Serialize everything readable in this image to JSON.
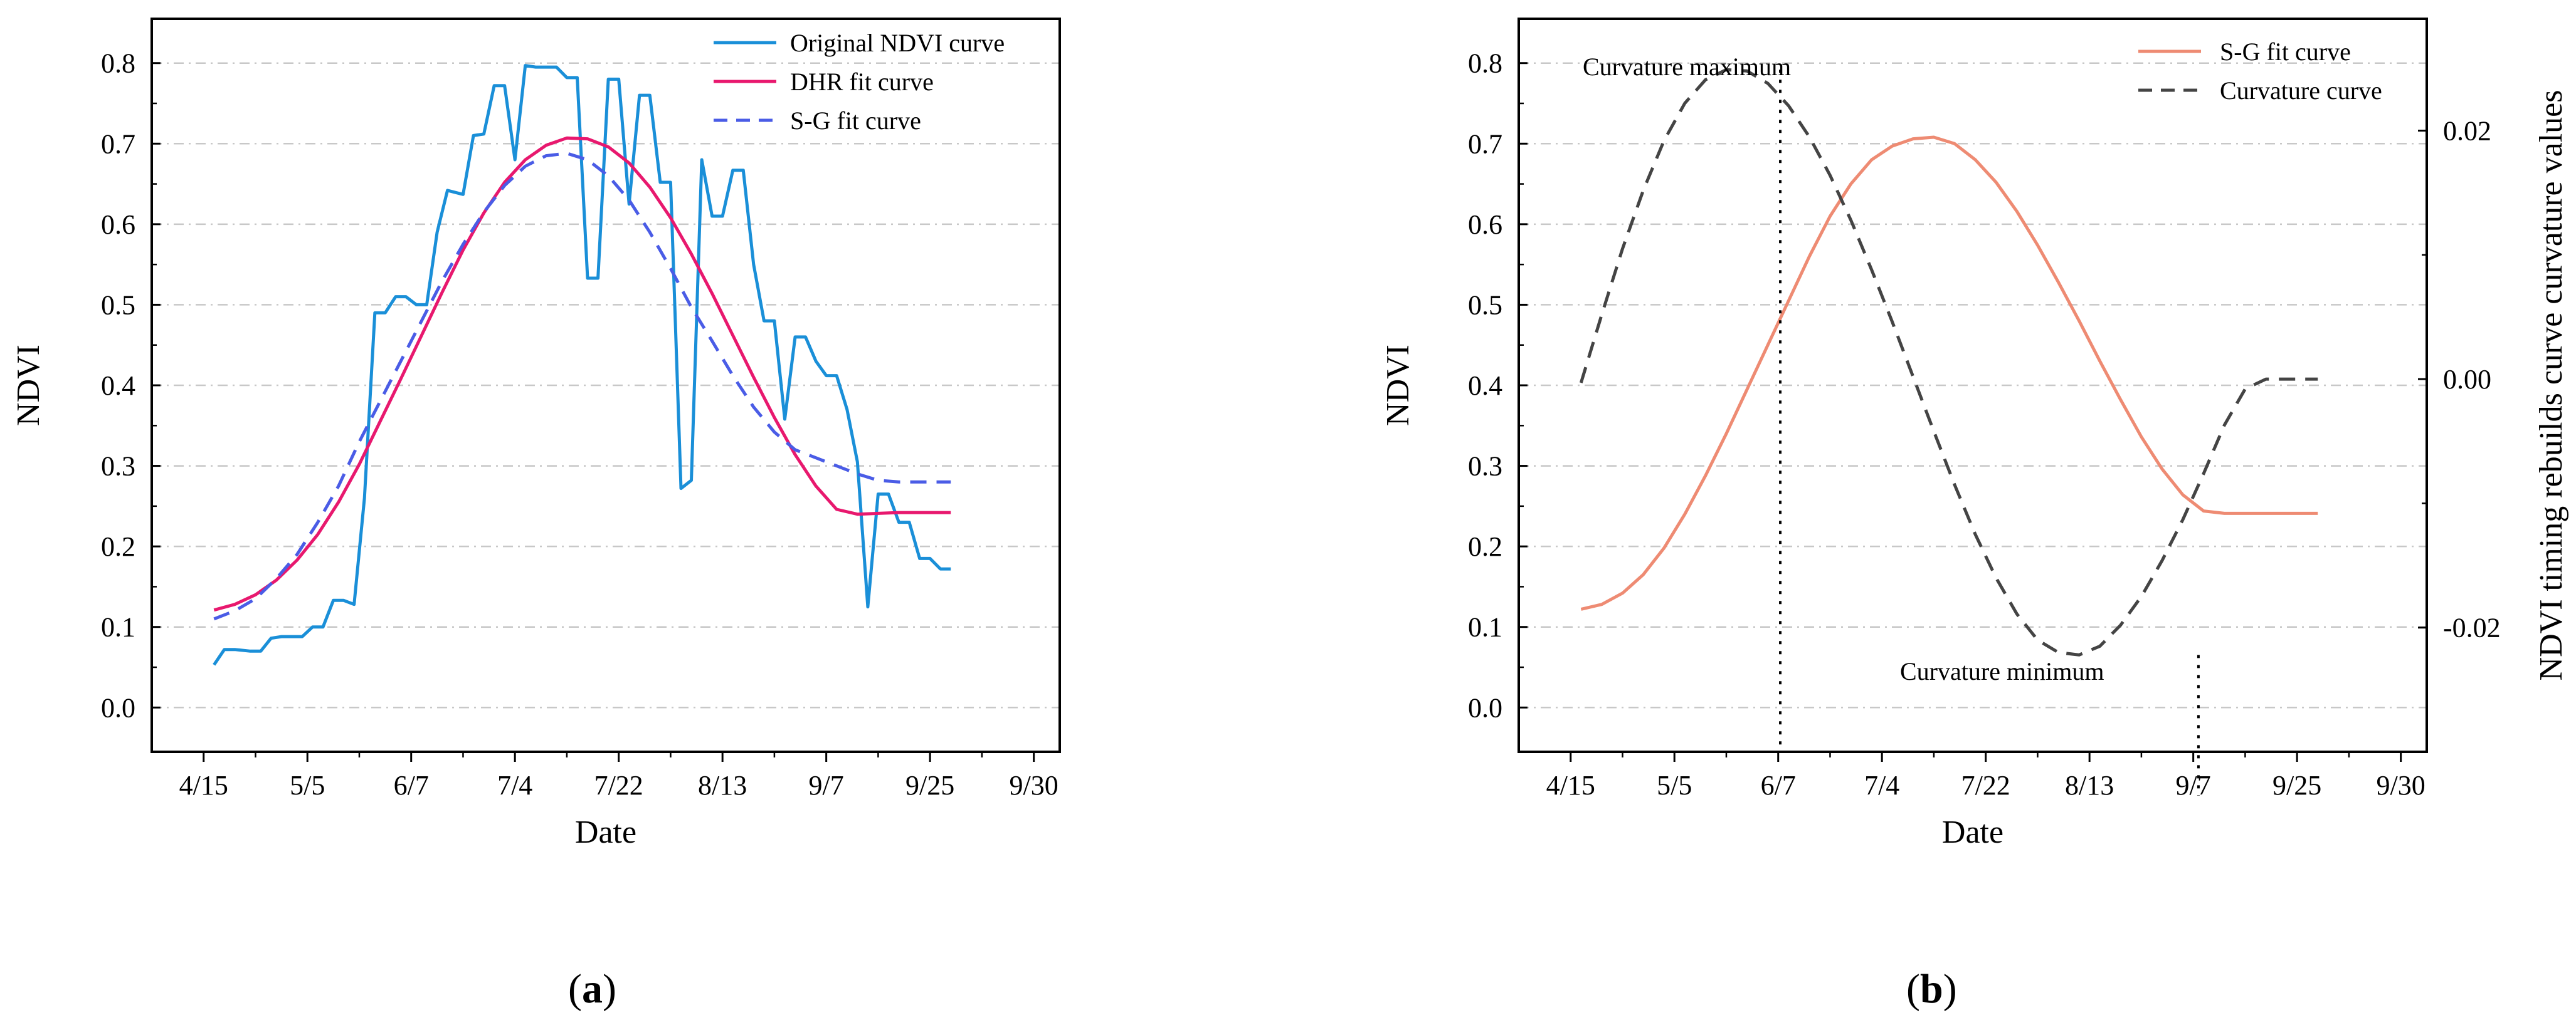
{
  "chart_data": [
    {
      "id": "a",
      "type": "line",
      "panel_label": "(a)",
      "panel_letter": "a",
      "xlabel": "Date",
      "ylabel": "NDVI",
      "x_tick_labels": [
        "4/15",
        "5/5",
        "6/7",
        "7/4",
        "7/22",
        "8/13",
        "9/7",
        "9/25",
        "9/30"
      ],
      "x_tick_positions": [
        0,
        1,
        2,
        3,
        4,
        5,
        6,
        7,
        8
      ],
      "xlim": [
        -0.5,
        8.25
      ],
      "ylim": [
        -0.055,
        0.855
      ],
      "yticks": [
        0.0,
        0.1,
        0.2,
        0.3,
        0.4,
        0.5,
        0.6,
        0.7,
        0.8
      ],
      "grid": "horizontal dash-dot",
      "legend_position": "top-right",
      "series": [
        {
          "name": "Original NDVI curve",
          "color": "#1a8fd8",
          "style": "solid",
          "x": [
            0.1,
            0.2,
            0.3,
            0.45,
            0.55,
            0.65,
            0.75,
            0.85,
            0.95,
            1.05,
            1.15,
            1.25,
            1.35,
            1.45,
            1.55,
            1.65,
            1.75,
            1.85,
            1.95,
            2.05,
            2.15,
            2.25,
            2.35,
            2.5,
            2.6,
            2.7,
            2.8,
            2.9,
            3.0,
            3.1,
            3.2,
            3.3,
            3.4,
            3.5,
            3.6,
            3.7,
            3.8,
            3.9,
            4.0,
            4.1,
            4.2,
            4.3,
            4.4,
            4.5,
            4.6,
            4.7,
            4.8,
            4.9,
            5.0,
            5.1,
            5.2,
            5.3,
            5.4,
            5.5,
            5.6,
            5.7,
            5.8,
            5.9,
            6.0,
            6.1,
            6.2,
            6.3,
            6.4,
            6.5,
            6.6,
            6.7,
            6.8,
            6.9,
            7.0,
            7.1,
            7.2
          ],
          "values": [
            0.053,
            0.072,
            0.072,
            0.07,
            0.07,
            0.086,
            0.088,
            0.088,
            0.088,
            0.1,
            0.1,
            0.133,
            0.133,
            0.128,
            0.26,
            0.49,
            0.49,
            0.51,
            0.51,
            0.5,
            0.5,
            0.59,
            0.642,
            0.637,
            0.71,
            0.712,
            0.772,
            0.772,
            0.68,
            0.797,
            0.795,
            0.795,
            0.795,
            0.782,
            0.782,
            0.533,
            0.533,
            0.78,
            0.78,
            0.625,
            0.76,
            0.76,
            0.652,
            0.652,
            0.272,
            0.282,
            0.68,
            0.61,
            0.61,
            0.667,
            0.667,
            0.55,
            0.48,
            0.48,
            0.358,
            0.46,
            0.46,
            0.43,
            0.412,
            0.412,
            0.37,
            0.305,
            0.125,
            0.265,
            0.265,
            0.23,
            0.23,
            0.185,
            0.185,
            0.172,
            0.172
          ]
        },
        {
          "name": "DHR fit curve",
          "color": "#e8186e",
          "style": "solid",
          "x": [
            0.1,
            0.3,
            0.5,
            0.7,
            0.9,
            1.1,
            1.3,
            1.5,
            1.7,
            1.9,
            2.1,
            2.3,
            2.5,
            2.7,
            2.9,
            3.1,
            3.3,
            3.5,
            3.7,
            3.9,
            4.1,
            4.3,
            4.5,
            4.7,
            4.9,
            5.1,
            5.3,
            5.5,
            5.7,
            5.9,
            6.1,
            6.3,
            6.5,
            6.7,
            6.9,
            7.1,
            7.2
          ],
          "values": [
            0.121,
            0.128,
            0.14,
            0.158,
            0.183,
            0.215,
            0.255,
            0.302,
            0.355,
            0.408,
            0.462,
            0.516,
            0.568,
            0.614,
            0.652,
            0.68,
            0.698,
            0.707,
            0.706,
            0.696,
            0.676,
            0.646,
            0.608,
            0.563,
            0.514,
            0.462,
            0.41,
            0.36,
            0.314,
            0.275,
            0.246,
            0.24,
            0.241,
            0.242,
            0.242,
            0.242,
            0.242
          ]
        },
        {
          "name": "S-G fit curve",
          "color": "#4a5ce6",
          "style": "dashed",
          "x": [
            0.1,
            0.3,
            0.5,
            0.7,
            0.9,
            1.1,
            1.3,
            1.5,
            1.7,
            1.9,
            2.1,
            2.3,
            2.5,
            2.7,
            2.9,
            3.1,
            3.3,
            3.5,
            3.7,
            3.9,
            4.1,
            4.3,
            4.5,
            4.7,
            4.9,
            5.1,
            5.3,
            5.5,
            5.7,
            5.9,
            6.1,
            6.3,
            6.5,
            6.7,
            6.9,
            7.1,
            7.2
          ],
          "values": [
            0.11,
            0.12,
            0.135,
            0.16,
            0.19,
            0.23,
            0.275,
            0.33,
            0.38,
            0.43,
            0.48,
            0.53,
            0.575,
            0.615,
            0.648,
            0.672,
            0.685,
            0.688,
            0.68,
            0.66,
            0.63,
            0.59,
            0.545,
            0.497,
            0.455,
            0.412,
            0.373,
            0.342,
            0.32,
            0.31,
            0.3,
            0.29,
            0.282,
            0.28,
            0.28,
            0.28,
            0.28
          ]
        }
      ]
    },
    {
      "id": "b",
      "type": "line",
      "panel_label": "(b)",
      "panel_letter": "b",
      "xlabel": "Date",
      "ylabel": "NDVI",
      "y2label": "NDVI timing rebuilds curve curvature values",
      "x_tick_labels": [
        "4/15",
        "5/5",
        "6/7",
        "7/4",
        "7/22",
        "8/13",
        "9/7",
        "9/25",
        "9/30"
      ],
      "x_tick_positions": [
        0,
        1,
        2,
        3,
        4,
        5,
        6,
        7,
        8
      ],
      "xlim": [
        -0.5,
        8.25
      ],
      "ylim": [
        -0.055,
        0.855
      ],
      "yticks": [
        0.0,
        0.1,
        0.2,
        0.3,
        0.4,
        0.5,
        0.6,
        0.7,
        0.8
      ],
      "y2lim": [
        -0.03,
        0.029
      ],
      "y2ticks": [
        -0.02,
        0.0,
        0.02
      ],
      "y2tick_labels": [
        "-0.02",
        "0.00",
        "0.02"
      ],
      "grid": "horizontal dash-dot",
      "legend_position": "top-right",
      "series": [
        {
          "name": "S-G fit curve",
          "color": "#ee8b73",
          "style": "solid",
          "axis": "left",
          "x": [
            0.1,
            0.3,
            0.5,
            0.7,
            0.9,
            1.1,
            1.3,
            1.5,
            1.7,
            1.9,
            2.1,
            2.3,
            2.5,
            2.7,
            2.9,
            3.1,
            3.3,
            3.5,
            3.7,
            3.9,
            4.1,
            4.3,
            4.5,
            4.7,
            4.9,
            5.1,
            5.3,
            5.5,
            5.7,
            5.9,
            6.1,
            6.3,
            6.5,
            6.7,
            6.9,
            7.1,
            7.2
          ],
          "values": [
            0.122,
            0.128,
            0.142,
            0.165,
            0.198,
            0.24,
            0.288,
            0.34,
            0.395,
            0.45,
            0.505,
            0.56,
            0.61,
            0.65,
            0.68,
            0.697,
            0.706,
            0.708,
            0.7,
            0.68,
            0.652,
            0.616,
            0.574,
            0.528,
            0.48,
            0.43,
            0.382,
            0.336,
            0.296,
            0.264,
            0.244,
            0.241,
            0.241,
            0.241,
            0.241,
            0.241,
            0.241
          ]
        },
        {
          "name": "Curvature curve",
          "color": "#444444",
          "style": "dashed",
          "axis": "right",
          "x": [
            0.1,
            0.3,
            0.5,
            0.7,
            0.9,
            1.1,
            1.3,
            1.5,
            1.7,
            1.9,
            2.1,
            2.3,
            2.5,
            2.7,
            2.9,
            3.1,
            3.3,
            3.5,
            3.7,
            3.9,
            4.1,
            4.3,
            4.5,
            4.7,
            4.9,
            5.1,
            5.3,
            5.5,
            5.7,
            5.9,
            6.1,
            6.3,
            6.5,
            6.7,
            6.9,
            7.1,
            7.2
          ],
          "values": [
            -0.0003,
            0.0052,
            0.0105,
            0.0152,
            0.0192,
            0.0222,
            0.0241,
            0.0249,
            0.0248,
            0.0238,
            0.022,
            0.0195,
            0.0164,
            0.0128,
            0.0088,
            0.0046,
            0.0002,
            -0.0042,
            -0.0085,
            -0.0125,
            -0.016,
            -0.0189,
            -0.021,
            -0.022,
            -0.0222,
            -0.0215,
            -0.0198,
            -0.0175,
            -0.0146,
            -0.0113,
            -0.0076,
            -0.0037,
            -0.0008,
            0.0,
            0.0,
            0.0,
            0.0
          ]
        }
      ],
      "annotations": [
        {
          "text": "Curvature maximum",
          "x": 2.02,
          "anchor_value": 0.0249
        },
        {
          "text": "Curvature minimum",
          "x": 6.05,
          "anchor_value": -0.0222
        }
      ]
    }
  ]
}
